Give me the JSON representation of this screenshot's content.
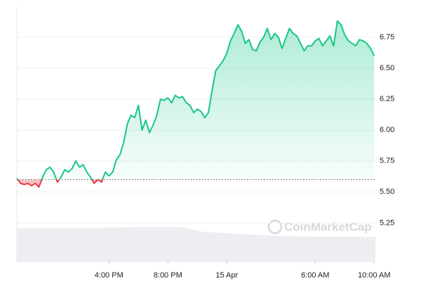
{
  "chart_data": {
    "type": "line",
    "watermark": "CoinMarketCap",
    "categories": [
      null,
      null,
      null,
      null,
      null,
      null,
      null,
      null,
      null,
      null,
      null,
      null,
      null,
      null,
      null,
      null,
      null,
      null,
      null,
      null,
      null,
      null,
      null,
      null,
      null,
      "4:00 PM",
      null,
      null,
      null,
      null,
      null,
      null,
      null,
      null,
      null,
      null,
      null,
      null,
      null,
      null,
      null,
      "8:00 PM",
      null,
      null,
      null,
      null,
      null,
      null,
      null,
      null,
      null,
      null,
      null,
      null,
      null,
      null,
      null,
      "15 Apr",
      null,
      null,
      null,
      null,
      null,
      null,
      null,
      null,
      null,
      null,
      null,
      null,
      null,
      null,
      null,
      null,
      null,
      null,
      null,
      null,
      null,
      null,
      null,
      "6:00 AM",
      null,
      null,
      null,
      null,
      null,
      null,
      null,
      null,
      null,
      null,
      null,
      null,
      null,
      null,
      null,
      "10:00 AM"
    ],
    "values": [
      5.61,
      5.57,
      5.56,
      5.57,
      5.55,
      5.57,
      5.54,
      5.62,
      5.68,
      5.7,
      5.66,
      5.58,
      5.62,
      5.68,
      5.66,
      5.69,
      5.75,
      5.7,
      5.72,
      5.66,
      5.62,
      5.57,
      5.6,
      5.58,
      5.66,
      5.63,
      5.66,
      5.76,
      5.8,
      5.9,
      6.05,
      6.12,
      6.1,
      6.2,
      6.0,
      6.08,
      5.98,
      6.04,
      6.12,
      6.25,
      6.24,
      6.26,
      6.22,
      6.28,
      6.26,
      6.27,
      6.22,
      6.2,
      6.14,
      6.17,
      6.15,
      6.1,
      6.14,
      6.32,
      6.48,
      6.52,
      6.56,
      6.62,
      6.72,
      6.78,
      6.85,
      6.8,
      6.7,
      6.73,
      6.65,
      6.64,
      6.71,
      6.75,
      6.82,
      6.73,
      6.78,
      6.75,
      6.66,
      6.74,
      6.82,
      6.78,
      6.76,
      6.7,
      6.64,
      6.68,
      6.68,
      6.72,
      6.74,
      6.68,
      6.72,
      6.76,
      6.68,
      6.88,
      6.85,
      6.77,
      6.72,
      6.7,
      6.68,
      6.73,
      6.72,
      6.7,
      6.66,
      6.6
    ],
    "baseline": 5.6,
    "up_color": "#16c784",
    "down_color": "#ea3943",
    "ylim": [
      4.94,
      7.05
    ],
    "yticks": [
      5.25,
      {
        "value": 5.5,
        "label": "5.50"
      },
      5.75,
      {
        "value": 6,
        "label": "6.00"
      },
      6.25,
      {
        "value": 6.5,
        "label": "6.50"
      },
      6.75
    ],
    "grid": true
  }
}
